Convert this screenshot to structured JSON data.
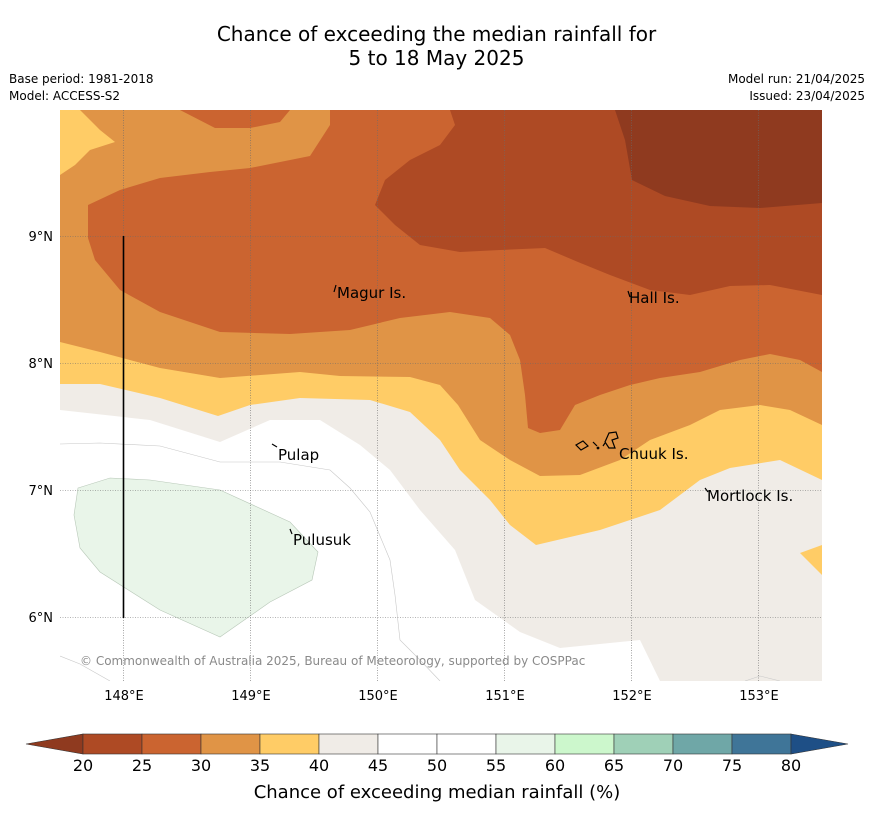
{
  "title": {
    "line1": "Chance of exceeding the median rainfall for",
    "line2": "5 to 18 May 2025"
  },
  "meta_left": {
    "base_period": "Base period: 1981-2018",
    "model": "Model: ACCESS-S2"
  },
  "meta_right": {
    "model_run": "Model run: 21/04/2025",
    "issued": "Issued: 23/04/2025"
  },
  "map": {
    "lon_ticks": [
      "148°E",
      "149°E",
      "150°E",
      "151°E",
      "152°E",
      "153°E"
    ],
    "lat_ticks": [
      "9°N",
      "8°N",
      "7°N",
      "6°N"
    ],
    "lon_range": [
      147.5,
      153.5
    ],
    "lat_range": [
      5.5,
      10.0
    ],
    "grid": true,
    "places": [
      {
        "name": "Magur Is."
      },
      {
        "name": "Hall Is."
      },
      {
        "name": "Pulap"
      },
      {
        "name": "Chuuk Is."
      },
      {
        "name": "Mortlock Is."
      },
      {
        "name": "Pulusuk"
      }
    ],
    "copyright": "© Commonwealth of Australia 2025, Bureau of Meteorology, supported by COSPPac"
  },
  "colorbar": {
    "label": "Chance of exceeding median rainfall (%)",
    "ticks": [
      "20",
      "25",
      "30",
      "35",
      "40",
      "45",
      "50",
      "55",
      "60",
      "65",
      "70",
      "75",
      "80"
    ],
    "colors": [
      "#ae4a24",
      "#cb6430",
      "#e09446",
      "#ffcc66",
      "#f0ece7",
      "#ffffff",
      "#ffffff",
      "#e9f5e9",
      "#ccf7cc",
      "#9fd0b7",
      "#6fa7a7",
      "#3f7598"
    ],
    "under_color": "#8f3a1f",
    "over_color": "#1e4f86"
  }
}
